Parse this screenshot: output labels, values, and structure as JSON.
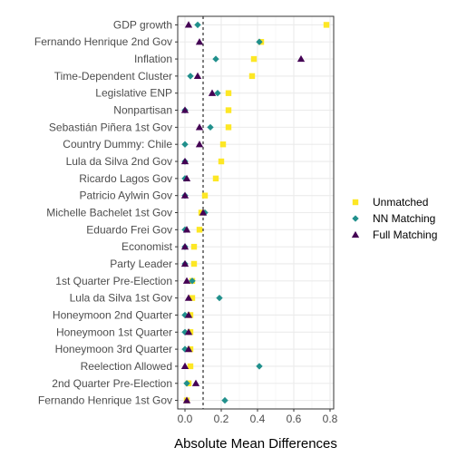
{
  "chart_data": {
    "type": "scatter",
    "xlabel": "Absolute Mean Differences",
    "ylabel": "",
    "xlim": [
      -0.04,
      0.82
    ],
    "xticks": [
      0.0,
      0.2,
      0.4,
      0.6,
      0.8
    ],
    "xtick_labels": [
      "0.0",
      "0.2",
      "0.4",
      "0.6",
      "0.8"
    ],
    "reference_line": 0.1,
    "grid": true,
    "legend_position": "right",
    "categories": [
      "GDP growth",
      "Fernando Henrique 2nd Gov",
      "Inflation",
      "Time-Dependent Cluster",
      "Legislative ENP",
      "Nonpartisan",
      "Sebastián Piñera 1st Gov",
      "Country Dummy: Chile",
      "Lula da Silva 2nd Gov",
      "Ricardo Lagos Gov",
      "Patricio Aylwin Gov",
      "Michelle Bachelet 1st Gov",
      "Eduardo Frei Gov",
      "Economist",
      "Party Leader",
      "1st Quarter Pre-Election",
      "Lula da Silva 1st Gov",
      "Honeymoon 2nd Quarter",
      "Honeymoon 1st Quarter",
      "Honeymoon 3rd Quarter",
      "Reelection Allowed",
      "2nd Quarter Pre-Election",
      "Fernando Henrique 1st Gov"
    ],
    "series": [
      {
        "name": "Unmatched",
        "color": "#FDE725",
        "marker": "square",
        "values": [
          0.78,
          0.42,
          0.38,
          0.37,
          0.24,
          0.24,
          0.24,
          0.21,
          0.2,
          0.17,
          0.11,
          0.09,
          0.08,
          0.05,
          0.05,
          0.04,
          0.04,
          0.03,
          0.03,
          0.03,
          0.03,
          0.02,
          0.01
        ]
      },
      {
        "name": "NN Matching",
        "color": "#21908C",
        "marker": "diamond",
        "values": [
          0.07,
          0.41,
          0.17,
          0.03,
          0.18,
          0.0,
          0.14,
          0.0,
          0.0,
          0.0,
          0.0,
          0.11,
          0.0,
          0.0,
          0.0,
          0.04,
          0.19,
          0.0,
          0.0,
          0.0,
          0.41,
          0.01,
          0.22
        ]
      },
      {
        "name": "Full Matching",
        "color": "#440154",
        "marker": "triangle",
        "values": [
          0.02,
          0.08,
          0.64,
          0.07,
          0.15,
          0.0,
          0.08,
          0.08,
          0.0,
          0.01,
          0.0,
          0.1,
          0.01,
          0.0,
          0.0,
          0.01,
          0.02,
          0.02,
          0.02,
          0.02,
          0.0,
          0.06,
          0.01
        ]
      }
    ]
  }
}
